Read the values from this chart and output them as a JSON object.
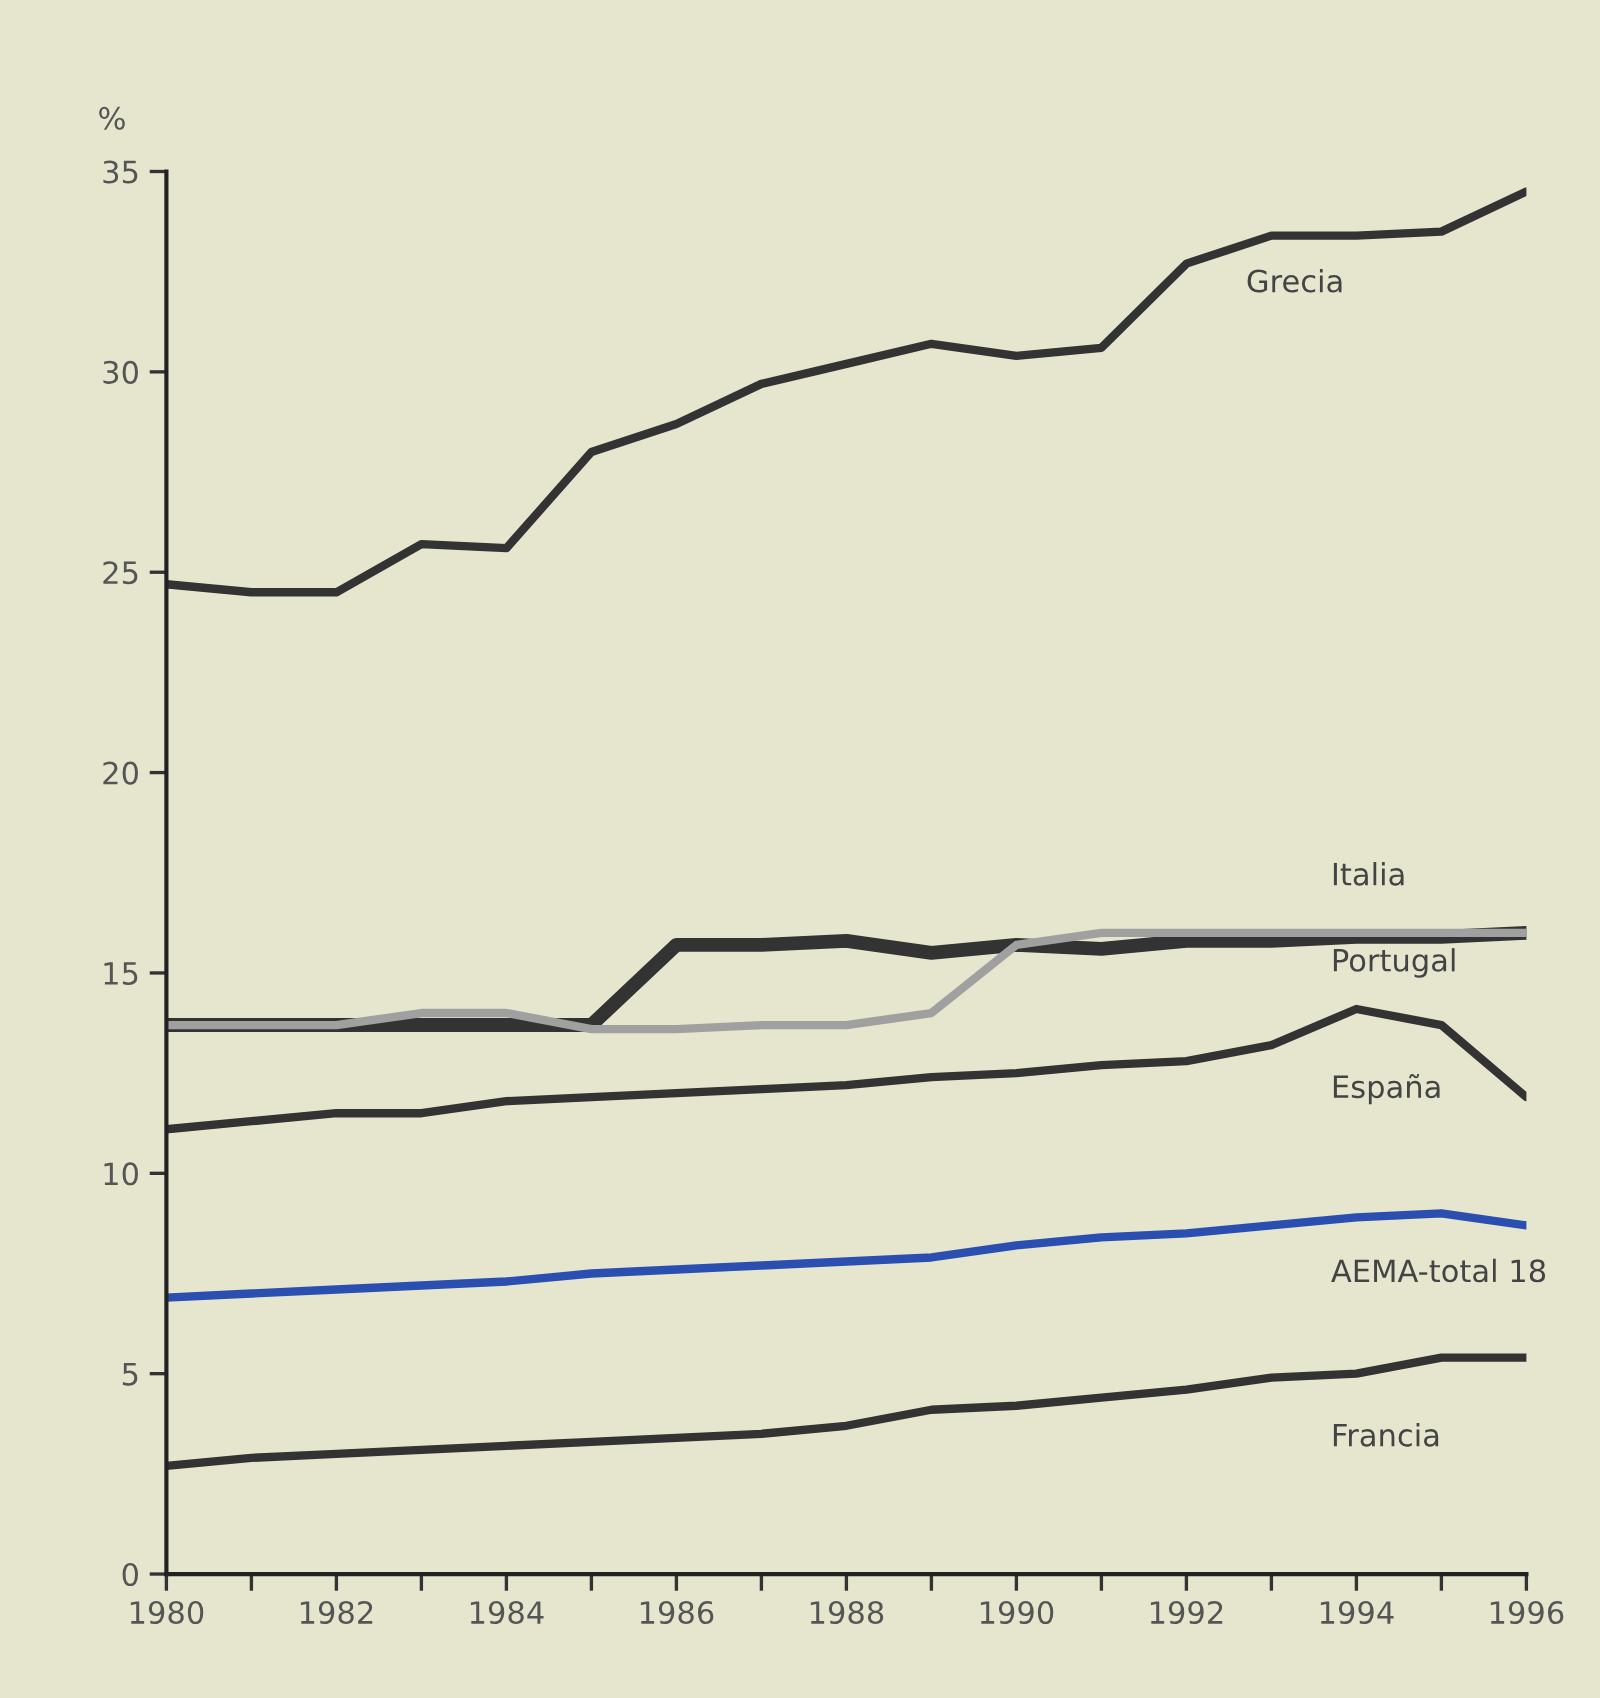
{
  "chart_data": {
    "type": "line",
    "ylabel": "%",
    "x": [
      1980,
      1981,
      1982,
      1983,
      1984,
      1985,
      1986,
      1987,
      1988,
      1989,
      1990,
      1991,
      1992,
      1993,
      1994,
      1995,
      1996
    ],
    "series": [
      {
        "name": "Grecia",
        "color": "#333333",
        "values": [
          24.7,
          24.5,
          24.5,
          25.7,
          25.6,
          28.0,
          28.7,
          29.7,
          30.2,
          30.7,
          30.4,
          30.6,
          32.7,
          33.4,
          33.4,
          33.5,
          34.5
        ]
      },
      {
        "name": "Italia",
        "color": "#333333",
        "values": [
          13.7,
          13.7,
          13.7,
          13.7,
          13.7,
          13.7,
          15.7,
          15.7,
          15.8,
          15.5,
          15.7,
          15.6,
          15.8,
          15.8,
          15.9,
          15.9,
          16.0
        ]
      },
      {
        "name": "Portugal",
        "color": "#a0a0a0",
        "values": [
          13.7,
          13.7,
          13.7,
          14.0,
          14.0,
          13.6,
          13.6,
          13.7,
          13.7,
          14.0,
          15.7,
          16.0,
          16.0,
          16.0,
          16.0,
          16.0,
          16.0
        ]
      },
      {
        "name": "España",
        "color": "#333333",
        "values": [
          11.1,
          11.3,
          11.5,
          11.5,
          11.8,
          11.9,
          12.0,
          12.1,
          12.2,
          12.4,
          12.5,
          12.7,
          12.8,
          13.2,
          14.1,
          13.7,
          11.9
        ]
      },
      {
        "name": "AEMA-total 18",
        "color": "#2a4fb0",
        "values": [
          6.9,
          7.0,
          7.1,
          7.2,
          7.3,
          7.5,
          7.6,
          7.7,
          7.8,
          7.9,
          8.2,
          8.4,
          8.5,
          8.7,
          8.9,
          9.0,
          8.7
        ]
      },
      {
        "name": "Francia",
        "color": "#333333",
        "values": [
          2.7,
          2.9,
          3.0,
          3.1,
          3.2,
          3.3,
          3.4,
          3.5,
          3.7,
          4.1,
          4.2,
          4.4,
          4.6,
          4.9,
          5.0,
          5.4,
          5.4
        ]
      }
    ],
    "xlim": [
      1980,
      1996
    ],
    "ylim": [
      0,
      35
    ],
    "xticks": [
      1980,
      {
        "value": 1981,
        "label": null
      },
      1982,
      {
        "value": 1983,
        "label": null
      },
      1984,
      {
        "value": 1985,
        "label": null
      },
      1986,
      {
        "value": 1987,
        "label": null
      },
      1988,
      {
        "value": 1989,
        "label": null
      },
      1990,
      {
        "value": 1991,
        "label": null
      },
      1992,
      {
        "value": 1993,
        "label": null
      },
      1994,
      {
        "value": 1995,
        "label": null
      },
      1996
    ],
    "yticks": [
      0,
      5,
      10,
      15,
      20,
      25,
      30,
      35
    ],
    "grid": false,
    "legend": false,
    "marker": "none",
    "line_style": "solid"
  }
}
